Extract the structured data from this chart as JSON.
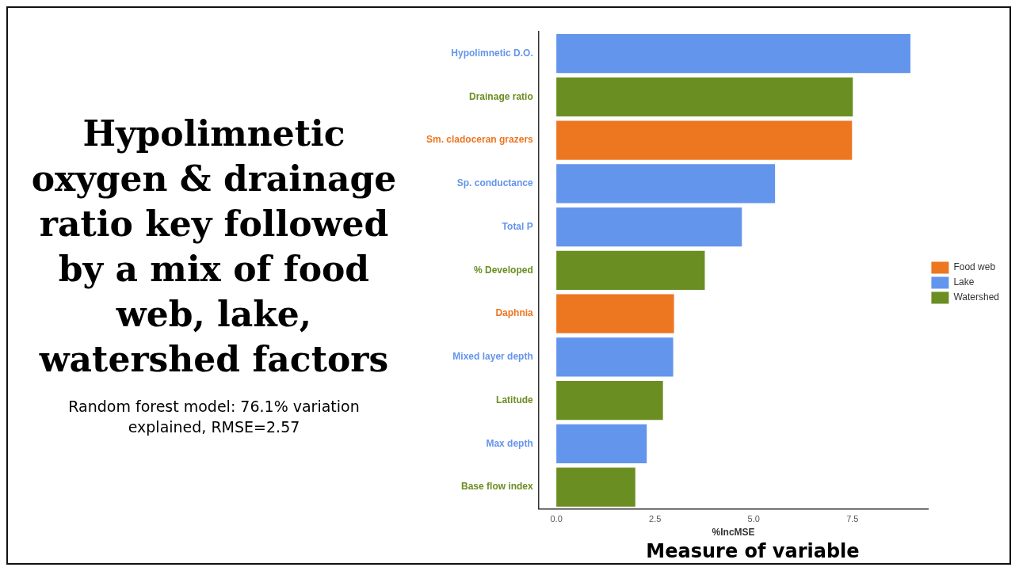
{
  "chart_data": {
    "type": "bar",
    "orientation": "horizontal",
    "stacked": true,
    "title": "Hypolimnetic oxygen & drainage ratio key followed by a mix of food web, lake, watershed factors",
    "subtitle": "Random forest model: 76.1% variation explained, RMSE=2.57",
    "xlabel": "%IncMSE",
    "annotations": [
      "Measure of variable"
    ],
    "categories": [
      "Hypolimnetic D.O.",
      "Drainage ratio",
      "Sm. cladoceran grazers",
      "Sp. conductance",
      "Total P",
      "% Developed",
      "Daphnia",
      "Mixed layer depth",
      "Latitude",
      "Max depth",
      "Base flow index"
    ],
    "series": [
      {
        "name": "Food web",
        "color": "#ed7621",
        "values": [
          null,
          null,
          7.49,
          null,
          null,
          null,
          2.98,
          null,
          null,
          null,
          null
        ]
      },
      {
        "name": "Lake",
        "color": "#6495ed",
        "values": [
          8.97,
          null,
          null,
          5.54,
          4.7,
          null,
          null,
          2.96,
          null,
          2.29,
          null
        ]
      },
      {
        "name": "Watershed",
        "color": "#6b8e23",
        "values": [
          null,
          7.51,
          null,
          null,
          null,
          3.76,
          null,
          null,
          2.7,
          null,
          2.0
        ]
      }
    ],
    "xlim": [
      -0.45,
      9.42
    ],
    "xticks": [
      {
        "value": 0,
        "label": "0.0"
      },
      {
        "value": 2.5,
        "label": "2.5"
      },
      {
        "value": 5,
        "label": "5.0"
      },
      {
        "value": 7.5,
        "label": "7.5"
      }
    ],
    "grid": false,
    "legend": "right"
  }
}
